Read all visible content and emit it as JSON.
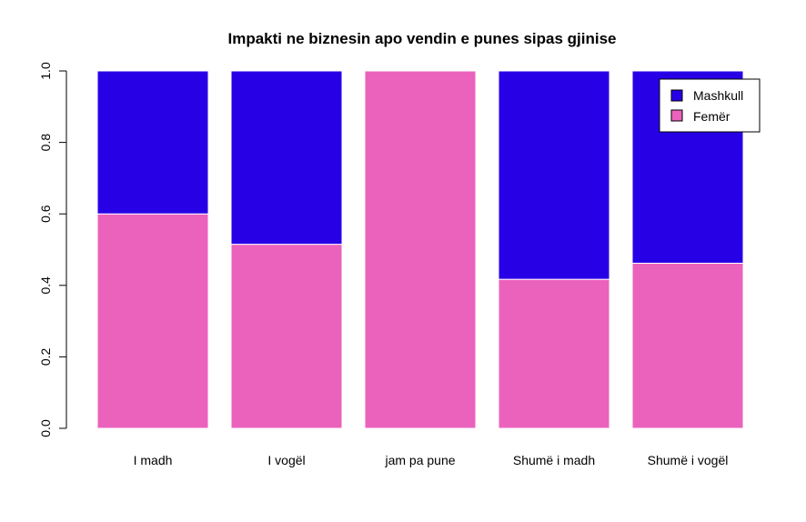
{
  "chart_data": {
    "type": "bar",
    "stacked": true,
    "title": "Impakti ne biznesin apo vendin e punes sipas gjinise",
    "xlabel": "",
    "ylabel": "",
    "categories": [
      "I madh",
      "I vogël",
      "jam pa pune",
      "Shumë i madh",
      "Shumë i vogël"
    ],
    "series": [
      {
        "name": "Femër",
        "color": "#EB62BC",
        "values": [
          0.6,
          0.515,
          1.0,
          0.417,
          0.462
        ]
      },
      {
        "name": "Mashkull",
        "color": "#2800E6",
        "values": [
          0.4,
          0.485,
          0.0,
          0.583,
          0.538
        ]
      }
    ],
    "ylim": [
      0,
      1
    ],
    "yticks": [
      "0.0",
      "0.2",
      "0.4",
      "0.6",
      "0.8",
      "1.0"
    ],
    "grid": false,
    "legend_position": "top-right",
    "legend": [
      {
        "label": "Mashkull",
        "color": "#2800E6"
      },
      {
        "label": "Femër",
        "color": "#EB62BC"
      }
    ]
  }
}
